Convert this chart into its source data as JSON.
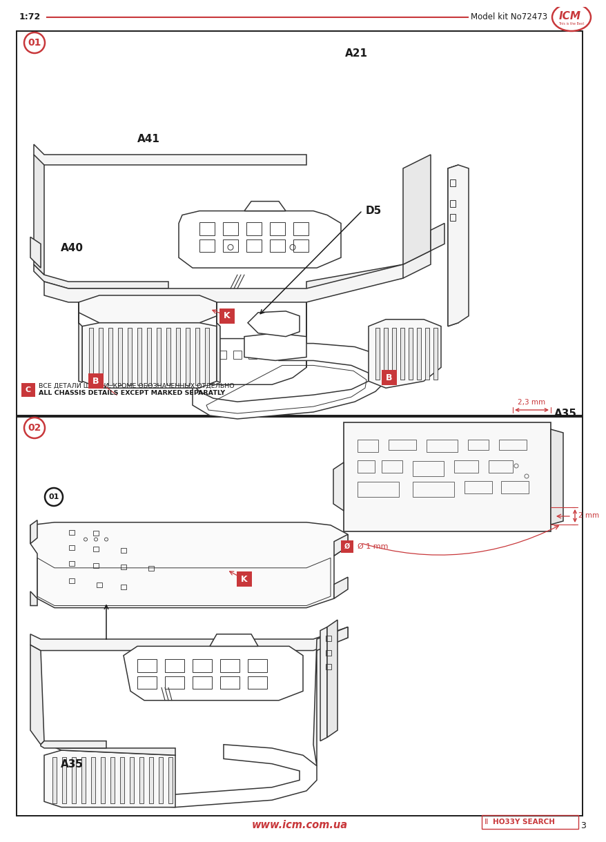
{
  "bg_color": "#ffffff",
  "red": "#c8373a",
  "dark": "#1a1a1a",
  "gray": "#aaaaaa",
  "scale_text": "1:72",
  "model_text": "Model kit No72473",
  "website": "www.icm.com.ua",
  "page_num": "3",
  "note_text1": "ВСЕ ДЕТАЛИ ШАССИ, КРОМЕ ОБОЗНАЧЕННЫХ ОТДЕЛЬНО",
  "note_text2": "ALL CHASSIS DETAILS EXCEPT MARKED SEPARATLY",
  "dim1": "2,3 mm",
  "dim2": "2 mm",
  "dim3": "Ø 1 mm"
}
